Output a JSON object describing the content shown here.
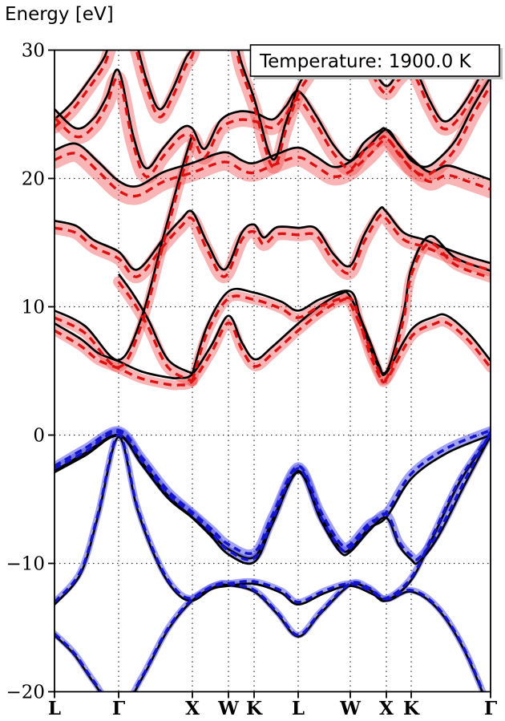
{
  "colors": {
    "background": "#ffffff",
    "frame": "#000000",
    "grid": "#333333",
    "reference_band": "#000000",
    "conduction_line": "#dd1111",
    "conduction_halo": "rgba(240,60,60,0.38)",
    "valence_line": "#1414cc",
    "valence_halo": "rgba(70,70,230,0.50)",
    "legend_shadow": "#bfbfbf",
    "legend_bg": "#ffffff",
    "legend_border": "#000000"
  },
  "legend": {
    "label": "Temperature: 1900.0 K"
  },
  "chart_data": {
    "type": "line",
    "title": "",
    "xlabel": "",
    "ylabel": "Energy [eV]",
    "ylim": [
      -20,
      30
    ],
    "grid": true,
    "legend_position": "upper right",
    "annotation": "Temperature: 1900.0 K",
    "y_ticks": [
      {
        "label": "30",
        "value": 30
      },
      {
        "label": "20",
        "value": 20
      },
      {
        "label": "10",
        "value": 10
      },
      {
        "label": "0",
        "value": 0
      },
      {
        "label": "−10",
        "value": -10
      },
      {
        "label": "−20",
        "value": -20
      }
    ],
    "k_points": [
      {
        "label": "L",
        "pos": 0.0
      },
      {
        "label": "Γ",
        "pos": 0.1471
      },
      {
        "label": "X",
        "pos": 0.3162
      },
      {
        "label": "W",
        "pos": 0.3989
      },
      {
        "label": "K",
        "pos": 0.4577
      },
      {
        "label": "L",
        "pos": 0.5588
      },
      {
        "label": "W",
        "pos": 0.6783
      },
      {
        "label": "X",
        "pos": 0.761
      },
      {
        "label": "K",
        "pos": 0.818
      },
      {
        "label": "Γ",
        "pos": 1.0
      }
    ],
    "series": [
      {
        "name": "valence-1",
        "role": "valence",
        "shift": 0.12,
        "halo": 4,
        "points": [
          [
            0,
            -15.6
          ],
          [
            0.045,
            -17.1
          ],
          [
            0.09,
            -19.3
          ],
          [
            0.147,
            -21.6
          ],
          [
            0.2,
            -19.0
          ],
          [
            0.26,
            -15.2
          ],
          [
            0.316,
            -12.9
          ],
          [
            0.37,
            -11.8
          ],
          [
            0.399,
            -11.7
          ],
          [
            0.458,
            -12.2
          ],
          [
            0.51,
            -13.9
          ],
          [
            0.559,
            -15.7
          ],
          [
            0.61,
            -13.9
          ],
          [
            0.678,
            -11.7
          ],
          [
            0.72,
            -12.0
          ],
          [
            0.761,
            -12.9
          ],
          [
            0.818,
            -12.2
          ],
          [
            0.88,
            -13.6
          ],
          [
            0.94,
            -16.8
          ],
          [
            1,
            -21.6
          ]
        ]
      },
      {
        "name": "valence-2",
        "role": "valence",
        "shift": 0.18,
        "halo": 4,
        "points": [
          [
            0,
            -13.2
          ],
          [
            0.06,
            -10.8
          ],
          [
            0.1,
            -6.3
          ],
          [
            0.147,
            -0.15
          ],
          [
            0.19,
            -5.8
          ],
          [
            0.24,
            -10.2
          ],
          [
            0.28,
            -12.3
          ],
          [
            0.316,
            -12.9
          ],
          [
            0.36,
            -12.0
          ],
          [
            0.399,
            -11.75
          ],
          [
            0.458,
            -11.6
          ],
          [
            0.52,
            -12.3
          ],
          [
            0.559,
            -13.2
          ],
          [
            0.62,
            -12.3
          ],
          [
            0.678,
            -11.75
          ],
          [
            0.73,
            -12.4
          ],
          [
            0.761,
            -12.9
          ],
          [
            0.818,
            -11.3
          ],
          [
            0.87,
            -7.8
          ],
          [
            0.93,
            -3.6
          ],
          [
            1,
            -0.1
          ]
        ]
      },
      {
        "name": "valence-3",
        "role": "valence",
        "shift": 0.3,
        "halo": 5,
        "points": [
          [
            0,
            -2.9
          ],
          [
            0.07,
            -1.6
          ],
          [
            0.147,
            -0.05
          ],
          [
            0.2,
            -2.3
          ],
          [
            0.26,
            -4.9
          ],
          [
            0.316,
            -6.45
          ],
          [
            0.36,
            -7.9
          ],
          [
            0.399,
            -9.3
          ],
          [
            0.458,
            -9.9
          ],
          [
            0.5,
            -6.9
          ],
          [
            0.559,
            -2.9
          ],
          [
            0.61,
            -6.6
          ],
          [
            0.655,
            -9.1
          ],
          [
            0.678,
            -9.1
          ],
          [
            0.72,
            -7.5
          ],
          [
            0.761,
            -6.45
          ],
          [
            0.79,
            -8.6
          ],
          [
            0.818,
            -9.7
          ],
          [
            0.835,
            -9.9
          ],
          [
            0.88,
            -7.9
          ],
          [
            0.94,
            -3.9
          ],
          [
            1,
            -0.05
          ]
        ]
      },
      {
        "name": "valence-4",
        "role": "valence",
        "shift": 0.38,
        "halo": 5,
        "points": [
          [
            0,
            -2.8
          ],
          [
            0.07,
            -1.4
          ],
          [
            0.147,
            0.0
          ],
          [
            0.2,
            -2.1
          ],
          [
            0.26,
            -4.7
          ],
          [
            0.316,
            -6.4
          ],
          [
            0.36,
            -7.7
          ],
          [
            0.399,
            -8.9
          ],
          [
            0.458,
            -9.5
          ],
          [
            0.5,
            -6.6
          ],
          [
            0.559,
            -2.8
          ],
          [
            0.61,
            -6.3
          ],
          [
            0.655,
            -8.8
          ],
          [
            0.678,
            -8.9
          ],
          [
            0.72,
            -7.3
          ],
          [
            0.761,
            -6.4
          ],
          [
            0.818,
            -3.4
          ],
          [
            0.9,
            -1.4
          ],
          [
            1,
            0.0
          ]
        ]
      },
      {
        "name": "conduction-1",
        "role": "conduction",
        "shift": -0.55,
        "halo": 6,
        "points": [
          [
            0,
            8.7
          ],
          [
            0.06,
            7.5
          ],
          [
            0.1,
            6.4
          ],
          [
            0.147,
            5.75
          ],
          [
            0.2,
            4.95
          ],
          [
            0.26,
            4.5
          ],
          [
            0.285,
            4.45
          ],
          [
            0.316,
            4.75
          ],
          [
            0.36,
            7.0
          ],
          [
            0.399,
            9.3
          ],
          [
            0.43,
            7.2
          ],
          [
            0.46,
            5.9
          ],
          [
            0.5,
            6.9
          ],
          [
            0.559,
            8.7
          ],
          [
            0.61,
            10.1
          ],
          [
            0.655,
            11.0
          ],
          [
            0.678,
            10.8
          ],
          [
            0.72,
            7.6
          ],
          [
            0.745,
            5.4
          ],
          [
            0.761,
            4.85
          ],
          [
            0.818,
            8.2
          ],
          [
            0.87,
            9.2
          ],
          [
            0.9,
            9.3
          ],
          [
            0.95,
            7.9
          ],
          [
            1,
            5.8
          ]
        ]
      },
      {
        "name": "conduction-2",
        "role": "conduction",
        "shift": -0.55,
        "halo": 6,
        "points": [
          [
            0,
            9.7
          ],
          [
            0.07,
            8.5
          ],
          [
            0.147,
            5.85
          ],
          [
            0.2,
            9.2
          ],
          [
            0.25,
            15.5
          ],
          [
            0.29,
            20.5
          ],
          [
            0.316,
            23.4
          ]
        ]
      },
      {
        "name": "conduction-3",
        "role": "conduction",
        "shift": -0.55,
        "halo": 6,
        "points": [
          [
            0.316,
            4.75
          ],
          [
            0.35,
            8.5
          ],
          [
            0.399,
            11.2
          ],
          [
            0.458,
            11.1
          ],
          [
            0.52,
            10.4
          ],
          [
            0.559,
            9.7
          ],
          [
            0.61,
            10.6
          ],
          [
            0.678,
            11.2
          ],
          [
            0.7,
            9.3
          ],
          [
            0.73,
            6.3
          ],
          [
            0.761,
            4.95
          ],
          [
            0.8,
            9.5
          ],
          [
            0.818,
            13.0
          ],
          [
            0.86,
            15.5
          ],
          [
            0.92,
            13.8
          ],
          [
            1,
            12.8
          ]
        ]
      },
      {
        "name": "conduction-4",
        "role": "conduction",
        "shift": -0.6,
        "halo": 7,
        "points": [
          [
            0.147,
            12.55
          ],
          [
            0.18,
            11.0
          ],
          [
            0.215,
            9.0
          ],
          [
            0.26,
            5.9
          ],
          [
            0.316,
            4.8
          ]
        ]
      },
      {
        "name": "upper-1",
        "role": "conduction",
        "shift": -0.55,
        "halo": 8,
        "points": [
          [
            0,
            16.7
          ],
          [
            0.05,
            16.3
          ],
          [
            0.09,
            15.2
          ],
          [
            0.147,
            14.3
          ],
          [
            0.19,
            12.9
          ],
          [
            0.25,
            15.3
          ],
          [
            0.29,
            16.8
          ],
          [
            0.316,
            17.4
          ],
          [
            0.35,
            15.0
          ],
          [
            0.39,
            12.9
          ],
          [
            0.43,
            15.8
          ],
          [
            0.458,
            16.4
          ],
          [
            0.48,
            15.4
          ],
          [
            0.51,
            16.2
          ],
          [
            0.559,
            16.15
          ],
          [
            0.6,
            16.1
          ],
          [
            0.64,
            14.1
          ],
          [
            0.678,
            13.2
          ],
          [
            0.71,
            15.6
          ],
          [
            0.745,
            17.6
          ],
          [
            0.761,
            17.4
          ],
          [
            0.8,
            15.8
          ],
          [
            0.85,
            15.2
          ],
          [
            0.9,
            14.5
          ],
          [
            0.95,
            13.9
          ],
          [
            1,
            13.4
          ]
        ]
      },
      {
        "name": "upper-2",
        "role": "conduction",
        "shift": -0.75,
        "halo": 11,
        "points": [
          [
            0,
            22.2
          ],
          [
            0.05,
            22.7
          ],
          [
            0.1,
            21.3
          ],
          [
            0.147,
            19.8
          ],
          [
            0.19,
            19.4
          ],
          [
            0.25,
            20.5
          ],
          [
            0.316,
            21.2
          ],
          [
            0.37,
            21.9
          ],
          [
            0.399,
            22.0
          ],
          [
            0.43,
            21.4
          ],
          [
            0.458,
            21.2
          ],
          [
            0.51,
            21.9
          ],
          [
            0.559,
            22.4
          ],
          [
            0.6,
            21.7
          ],
          [
            0.64,
            20.9
          ],
          [
            0.678,
            21.3
          ],
          [
            0.72,
            22.5
          ],
          [
            0.761,
            23.8
          ],
          [
            0.79,
            22.6
          ],
          [
            0.818,
            21.6
          ],
          [
            0.86,
            20.5
          ],
          [
            0.9,
            21.0
          ],
          [
            0.95,
            20.5
          ],
          [
            1,
            19.9
          ]
        ]
      },
      {
        "name": "upper-3",
        "role": "conduction",
        "shift": -0.65,
        "halo": 9,
        "points": [
          [
            0,
            25.4
          ],
          [
            0.05,
            23.9
          ],
          [
            0.09,
            24.7
          ],
          [
            0.12,
            26.4
          ],
          [
            0.147,
            28.4
          ],
          [
            0.18,
            23.4
          ],
          [
            0.21,
            20.8
          ],
          [
            0.25,
            22.4
          ],
          [
            0.29,
            23.9
          ],
          [
            0.316,
            23.9
          ],
          [
            0.344,
            22.3
          ],
          [
            0.38,
            24.5
          ],
          [
            0.42,
            25.2
          ],
          [
            0.46,
            25.1
          ],
          [
            0.5,
            24.6
          ],
          [
            0.53,
            25.6
          ],
          [
            0.559,
            26.8
          ],
          [
            0.6,
            24.9
          ],
          [
            0.64,
            22.6
          ],
          [
            0.678,
            21.4
          ],
          [
            0.71,
            22.8
          ],
          [
            0.745,
            23.7
          ],
          [
            0.761,
            23.8
          ],
          [
            0.8,
            22.2
          ],
          [
            0.818,
            21.4
          ],
          [
            0.85,
            20.9
          ],
          [
            0.88,
            21.5
          ],
          [
            0.92,
            23.0
          ],
          [
            0.96,
            25.6
          ],
          [
            1,
            27.9
          ]
        ]
      },
      {
        "name": "upper-4",
        "role": "conduction",
        "shift": -0.6,
        "halo": 8,
        "points": [
          [
            0,
            24.6
          ],
          [
            0.04,
            25.9
          ],
          [
            0.08,
            27.7
          ],
          [
            0.115,
            29.5
          ],
          [
            0.14,
            31.8
          ],
          [
            0.175,
            31.8
          ],
          [
            0.21,
            27.8
          ],
          [
            0.24,
            25.4
          ],
          [
            0.27,
            26.9
          ],
          [
            0.3,
            29.3
          ],
          [
            0.316,
            30.2
          ],
          [
            0.34,
            32.5
          ],
          [
            0.4,
            32.5
          ],
          [
            0.427,
            29.2
          ],
          [
            0.458,
            26.2
          ],
          [
            0.5,
            21.5
          ],
          [
            0.53,
            24.3
          ],
          [
            0.559,
            27.2
          ],
          [
            0.59,
            29.0
          ],
          [
            0.62,
            31.8
          ],
          [
            0.7,
            31.8
          ],
          [
            0.73,
            28.7
          ],
          [
            0.761,
            27.2
          ],
          [
            0.79,
            28.3
          ],
          [
            0.82,
            28.9
          ],
          [
            0.86,
            26.1
          ],
          [
            0.89,
            24.5
          ],
          [
            0.92,
            25.0
          ],
          [
            0.96,
            27.0
          ],
          [
            1,
            29.6
          ]
        ]
      }
    ]
  }
}
